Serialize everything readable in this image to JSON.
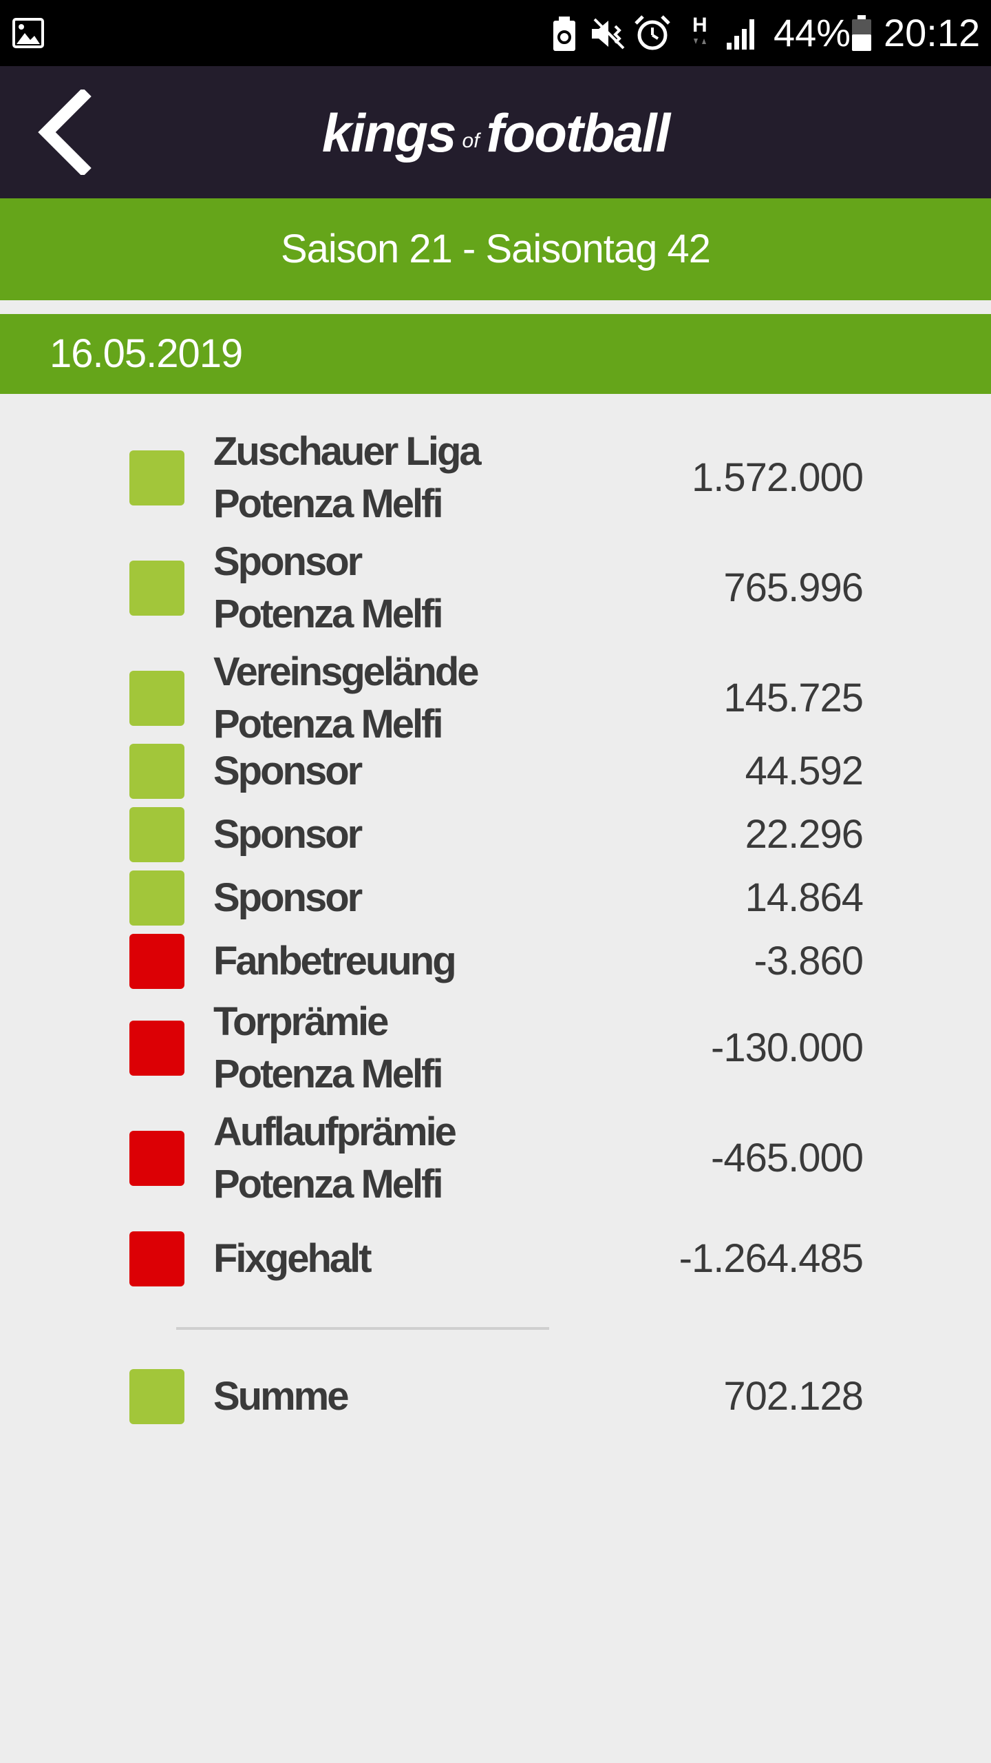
{
  "status_bar": {
    "battery_percent": "44%",
    "time": "20:12",
    "network_type": "H",
    "icons": [
      "gallery-icon",
      "battery-saver-icon",
      "mute-vibrate-icon",
      "alarm-icon",
      "network-h-icon",
      "signal-icon",
      "battery-icon"
    ]
  },
  "header": {
    "logo_part1": "kings",
    "logo_part2": "of",
    "logo_part3": "football",
    "back_icon": "chevron-left-icon"
  },
  "season_label": "Saison 21 - Saisontag 42",
  "date": "16.05.2019",
  "colors": {
    "income": "#a2c63a",
    "expense": "#dc0005",
    "green_bar": "#65a51a",
    "header": "#231d2c"
  },
  "entries": [
    {
      "line1": "Zuschauer Liga",
      "line2": "Potenza Melfi",
      "amount": "1.572.000",
      "type": "income"
    },
    {
      "line1": "Sponsor",
      "line2": "Potenza Melfi",
      "amount": "765.996",
      "type": "income"
    },
    {
      "line1": "Vereinsgelände",
      "line2": "Potenza Melfi",
      "amount": "145.725",
      "type": "income"
    },
    {
      "line1": "Sponsor",
      "line2": "",
      "amount": "44.592",
      "type": "income"
    },
    {
      "line1": "Sponsor",
      "line2": "",
      "amount": "22.296",
      "type": "income"
    },
    {
      "line1": "Sponsor",
      "line2": "",
      "amount": "14.864",
      "type": "income"
    },
    {
      "line1": "Fanbetreuung",
      "line2": "",
      "amount": "-3.860",
      "type": "expense"
    },
    {
      "line1": "Torprämie",
      "line2": "Potenza Melfi",
      "amount": "-130.000",
      "type": "expense"
    },
    {
      "line1": "Auflaufprämie",
      "line2": "Potenza Melfi",
      "amount": "-465.000",
      "type": "expense"
    },
    {
      "line1": "Fixgehalt",
      "line2": "",
      "amount": "-1.264.485",
      "type": "expense"
    }
  ],
  "total": {
    "label": "Summe",
    "amount": "702.128",
    "type": "income"
  }
}
